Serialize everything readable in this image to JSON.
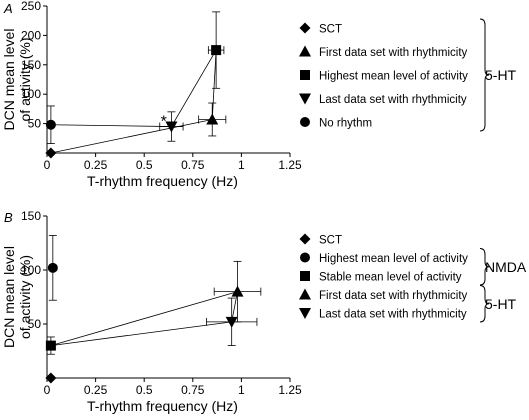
{
  "chart_data": [
    {
      "panel_label": "A",
      "type": "scatter",
      "xlabel": "T-rhythm frequency (Hz)",
      "ylabel_lines": [
        "DCN mean level",
        "of activity (%)"
      ],
      "xlim": [
        0,
        1.25
      ],
      "ylim": [
        0,
        250
      ],
      "xticks": [
        0,
        0.25,
        0.5,
        0.75,
        1,
        1.25
      ],
      "xtick_labels": [
        "0",
        "0.25",
        "0.5",
        "0.75",
        "1",
        "1.25"
      ],
      "yticks": [
        50,
        100,
        150,
        200,
        250
      ],
      "ytick_labels": [
        "50",
        "100",
        "150",
        "200",
        "250"
      ],
      "series": [
        {
          "name": "SCT",
          "marker": "diamond",
          "x": 0.02,
          "y": 0
        },
        {
          "name": "First data set with rhythmicity",
          "marker": "triangle-up",
          "x": 0.85,
          "y": 57,
          "xerr": 0.07,
          "yerr": 28
        },
        {
          "name": "Highest mean level of activity",
          "marker": "square",
          "x": 0.87,
          "y": 175,
          "xerr": 0.04,
          "yerr": 65
        },
        {
          "name": "Last data set with rhythmicity",
          "marker": "triangle-down",
          "x": 0.64,
          "y": 45,
          "xerr": 0.06,
          "yerr": 25
        },
        {
          "name": "No rhythm",
          "marker": "circle",
          "x": 0.02,
          "y": 48,
          "yerr": 32
        }
      ],
      "connections": [
        [
          3,
          4
        ],
        [
          3,
          2
        ],
        [
          0,
          1
        ],
        [
          1,
          2
        ]
      ],
      "annotation": {
        "text": "*",
        "x": 0.6,
        "y": 55
      },
      "group_label": "5-HT",
      "group_members": [
        0,
        1,
        2,
        3,
        4
      ]
    },
    {
      "panel_label": "B",
      "type": "scatter",
      "xlabel": "T-rhythm frequency (Hz)",
      "ylabel_lines": [
        "DCN mean level",
        "of activity (%)"
      ],
      "xlim": [
        0,
        1.25
      ],
      "ylim": [
        0,
        150
      ],
      "xticks": [
        0,
        0.25,
        0.5,
        0.75,
        1,
        1.25
      ],
      "xtick_labels": [
        "0",
        "0.25",
        "0.5",
        "0.75",
        "1",
        "1.25"
      ],
      "yticks": [
        50,
        100,
        150
      ],
      "ytick_labels": [
        "50",
        "100",
        "150"
      ],
      "series": [
        {
          "name": "SCT",
          "marker": "diamond",
          "x": 0.02,
          "y": 0
        },
        {
          "name": "Highest mean level of activity",
          "marker": "circle",
          "x": 0.03,
          "y": 102,
          "yerr": 30
        },
        {
          "name": "Stable mean level of activity",
          "marker": "square",
          "x": 0.02,
          "y": 30,
          "yerr": 8
        },
        {
          "name": "First data set with rhythmicity",
          "marker": "triangle-up",
          "x": 0.98,
          "y": 80,
          "xerr": 0.12,
          "yerr": 28
        },
        {
          "name": "Last data set with rhythmicity",
          "marker": "triangle-down",
          "x": 0.95,
          "y": 52,
          "xerr": 0.13,
          "yerr": 22
        }
      ],
      "connections": [
        [
          2,
          3
        ],
        [
          2,
          4
        ],
        [
          3,
          4
        ]
      ],
      "groups": [
        {
          "label": "NMDA",
          "members": [
            1,
            2
          ]
        },
        {
          "label": "5-HT",
          "members": [
            3,
            4
          ]
        }
      ]
    }
  ]
}
